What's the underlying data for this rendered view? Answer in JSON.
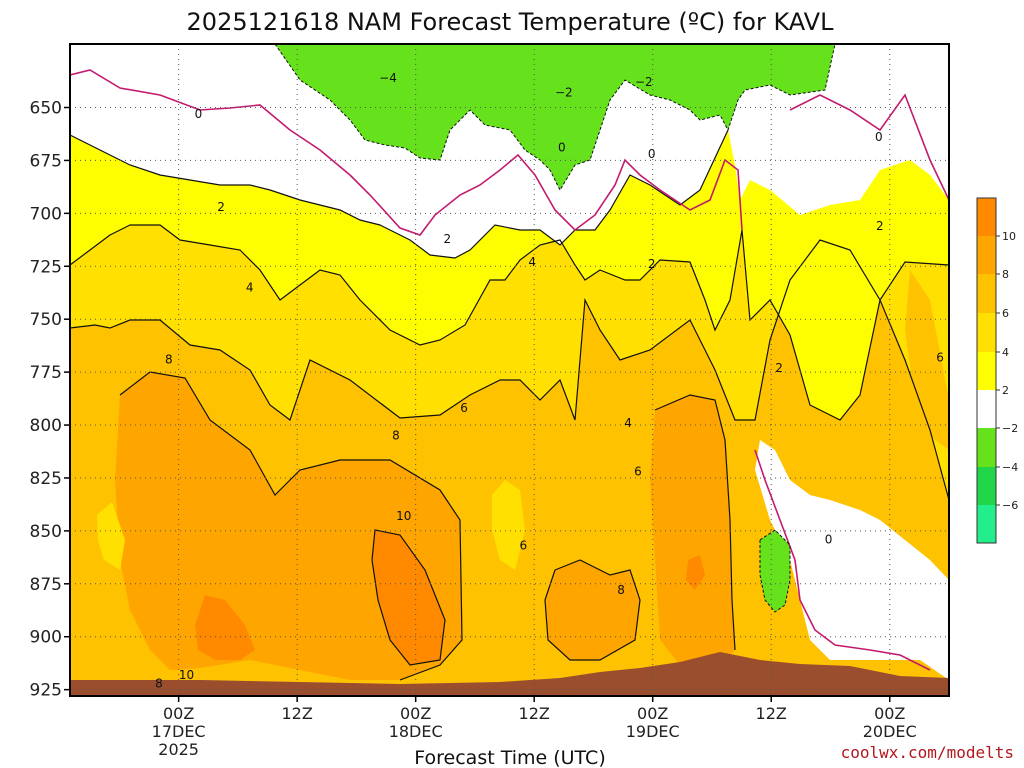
{
  "title": "2025121618 NAM Forecast Temperature (ºC) for KAVL",
  "credit": "coolwx.com/modelts",
  "colors": {
    "band_lt_m6": "#22ee8c",
    "band_m6_m4": "#22d64a",
    "band_m4_m2": "#66e21c",
    "band_m2_2": "#ffffff",
    "band_2_4": "#fffe00",
    "band_4_6": "#ffe000",
    "band_6_8": "#ffc200",
    "band_8_10": "#ffa500",
    "band_gt_10": "#ff8a00",
    "terrain": "#9a4e2e",
    "zero_contour": "#c41a6e"
  },
  "chart_data": {
    "type": "heatmap",
    "title": "2025121618 NAM Forecast Temperature (ºC) for KAVL",
    "xlabel": "Forecast Time (UTC)",
    "ylabel": "",
    "y_ticks": [
      650,
      675,
      700,
      725,
      750,
      775,
      800,
      825,
      850,
      875,
      900,
      925
    ],
    "y_range_hpa": [
      620,
      928
    ],
    "x_range_hours": [
      -5,
      84
    ],
    "x_ticks": [
      {
        "hour": 6,
        "label": "00Z",
        "sub1": "17DEC",
        "sub2": "2025"
      },
      {
        "hour": 18,
        "label": "12Z",
        "sub1": "",
        "sub2": ""
      },
      {
        "hour": 30,
        "label": "00Z",
        "sub1": "18DEC",
        "sub2": ""
      },
      {
        "hour": 42,
        "label": "12Z",
        "sub1": "",
        "sub2": ""
      },
      {
        "hour": 54,
        "label": "00Z",
        "sub1": "19DEC",
        "sub2": ""
      },
      {
        "hour": 66,
        "label": "12Z",
        "sub1": "",
        "sub2": ""
      },
      {
        "hour": 78,
        "label": "00Z",
        "sub1": "20DEC",
        "sub2": ""
      }
    ],
    "colorbar_ticks": [
      "10",
      "8",
      "6",
      "4",
      "2",
      "−2",
      "−4",
      "−6"
    ],
    "contour_levels": [
      -4,
      -2,
      0,
      2,
      4,
      6,
      8,
      10
    ],
    "contour_labels": [
      {
        "text": "−4",
        "hour": 27.2,
        "p": 636
      },
      {
        "text": "−2",
        "hour": 45.0,
        "p": 643
      },
      {
        "text": "−2",
        "hour": 53.1,
        "p": 638
      },
      {
        "text": "0",
        "hour": 8.0,
        "p": 653
      },
      {
        "text": "0",
        "hour": 44.8,
        "p": 669
      },
      {
        "text": "0",
        "hour": 53.9,
        "p": 672
      },
      {
        "text": "0",
        "hour": 76.9,
        "p": 664
      },
      {
        "text": "2",
        "hour": 10.3,
        "p": 697
      },
      {
        "text": "2",
        "hour": 33.2,
        "p": 712
      },
      {
        "text": "2",
        "hour": 53.9,
        "p": 724
      },
      {
        "text": "2",
        "hour": 77.0,
        "p": 706
      },
      {
        "text": "2",
        "hour": 66.8,
        "p": 773
      },
      {
        "text": "4",
        "hour": 13.2,
        "p": 735
      },
      {
        "text": "4",
        "hour": 41.8,
        "p": 723
      },
      {
        "text": "4",
        "hour": 51.5,
        "p": 799
      },
      {
        "text": "6",
        "hour": 34.9,
        "p": 792
      },
      {
        "text": "6",
        "hour": 52.5,
        "p": 822
      },
      {
        "text": "6",
        "hour": 40.9,
        "p": 857
      },
      {
        "text": "6",
        "hour": 83.1,
        "p": 768
      },
      {
        "text": "8",
        "hour": 5.0,
        "p": 769
      },
      {
        "text": "8",
        "hour": 28.0,
        "p": 805
      },
      {
        "text": "8",
        "hour": 50.8,
        "p": 878
      },
      {
        "text": "8",
        "hour": 4.0,
        "p": 922
      },
      {
        "text": "10",
        "hour": 28.8,
        "p": 843
      },
      {
        "text": "10",
        "hour": 6.8,
        "p": 918
      },
      {
        "text": "0",
        "hour": 71.8,
        "p": 854
      }
    ]
  }
}
